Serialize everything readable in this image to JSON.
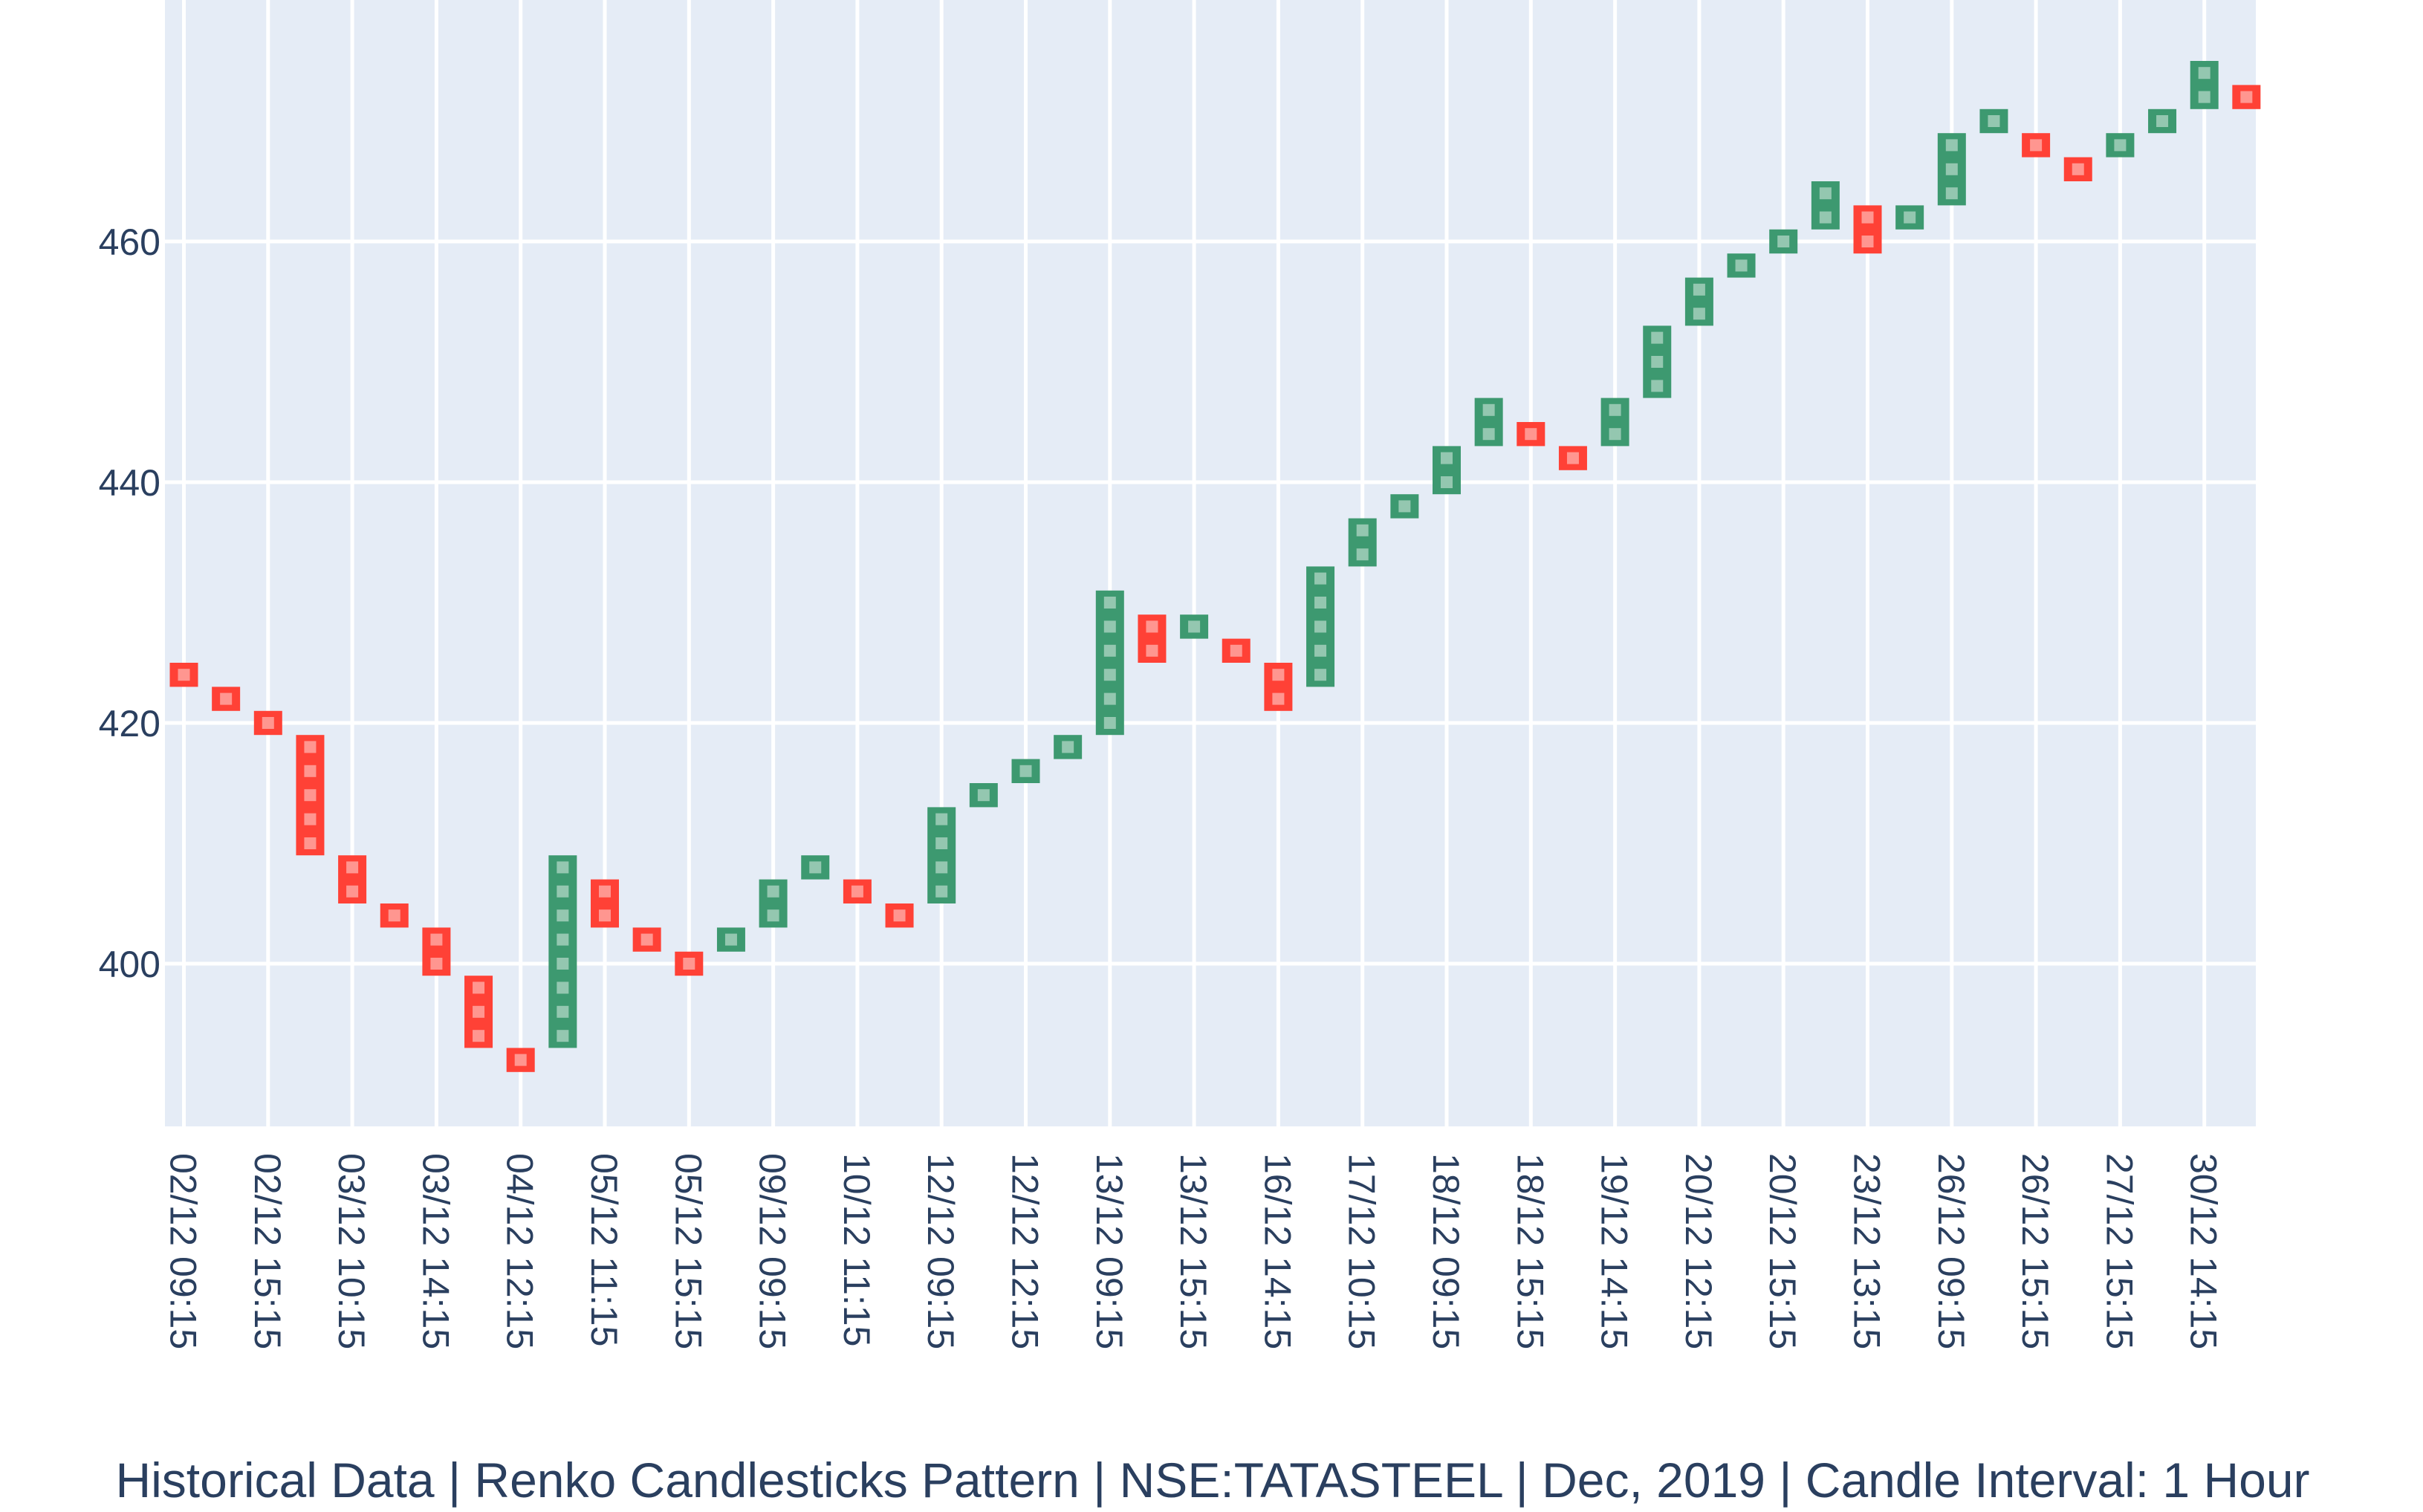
{
  "chart_data": {
    "type": "renko",
    "title": "Historical Data | Renko Candlesticks Pattern | NSE:TATASTEEL | Dec, 2019 | Candle Interval: 1 Hour",
    "xlabel": "",
    "ylabel": "",
    "box_size": 2,
    "ylim": [
      387,
      480
    ],
    "grid": true,
    "legend": "none",
    "colors": {
      "up": "#3d9970",
      "down": "#ff4136",
      "background": "#e5ecf6",
      "grid": "#ffffff",
      "text": "#2a3f5f"
    },
    "y_ticks": [
      400,
      420,
      440,
      460
    ],
    "x_tick_labels": [
      "02/12 09:15",
      "02/12 15:15",
      "03/12 10:15",
      "03/12 14:15",
      "04/12 12:15",
      "05/12 11:15",
      "05/12 15:15",
      "09/12 09:15",
      "10/12 11:15",
      "12/12 09:15",
      "12/12 12:15",
      "13/12 09:15",
      "13/12 15:15",
      "16/12 14:15",
      "17/12 10:15",
      "18/12 09:15",
      "18/12 15:15",
      "19/12 14:15",
      "20/12 12:15",
      "20/12 15:15",
      "23/12 13:15",
      "26/12 09:15",
      "26/12 15:15",
      "27/12 15:15",
      "30/12 14:15"
    ],
    "bricks": [
      {
        "direction": "down",
        "low": 423,
        "high": 425
      },
      {
        "direction": "down",
        "low": 421,
        "high": 423
      },
      {
        "direction": "down",
        "low": 419,
        "high": 421
      },
      {
        "direction": "down",
        "low": 409,
        "high": 419
      },
      {
        "direction": "down",
        "low": 405,
        "high": 409
      },
      {
        "direction": "down",
        "low": 403,
        "high": 405
      },
      {
        "direction": "down",
        "low": 399,
        "high": 403
      },
      {
        "direction": "down",
        "low": 393,
        "high": 399
      },
      {
        "direction": "down",
        "low": 391,
        "high": 393
      },
      {
        "direction": "up",
        "low": 393,
        "high": 409
      },
      {
        "direction": "down",
        "low": 403,
        "high": 407
      },
      {
        "direction": "down",
        "low": 401,
        "high": 403
      },
      {
        "direction": "down",
        "low": 399,
        "high": 401
      },
      {
        "direction": "up",
        "low": 401,
        "high": 403
      },
      {
        "direction": "up",
        "low": 403,
        "high": 407
      },
      {
        "direction": "up",
        "low": 407,
        "high": 409
      },
      {
        "direction": "down",
        "low": 405,
        "high": 407
      },
      {
        "direction": "down",
        "low": 403,
        "high": 405
      },
      {
        "direction": "up",
        "low": 405,
        "high": 413
      },
      {
        "direction": "up",
        "low": 413,
        "high": 415
      },
      {
        "direction": "up",
        "low": 415,
        "high": 417
      },
      {
        "direction": "up",
        "low": 417,
        "high": 419
      },
      {
        "direction": "up",
        "low": 419,
        "high": 431
      },
      {
        "direction": "down",
        "low": 425,
        "high": 429
      },
      {
        "direction": "up",
        "low": 427,
        "high": 429
      },
      {
        "direction": "down",
        "low": 425,
        "high": 427
      },
      {
        "direction": "down",
        "low": 421,
        "high": 425
      },
      {
        "direction": "up",
        "low": 423,
        "high": 433
      },
      {
        "direction": "up",
        "low": 433,
        "high": 437
      },
      {
        "direction": "up",
        "low": 437,
        "high": 439
      },
      {
        "direction": "up",
        "low": 439,
        "high": 443
      },
      {
        "direction": "up",
        "low": 443,
        "high": 447
      },
      {
        "direction": "down",
        "low": 443,
        "high": 445
      },
      {
        "direction": "down",
        "low": 441,
        "high": 443
      },
      {
        "direction": "up",
        "low": 443,
        "high": 447
      },
      {
        "direction": "up",
        "low": 447,
        "high": 453
      },
      {
        "direction": "up",
        "low": 453,
        "high": 457
      },
      {
        "direction": "up",
        "low": 457,
        "high": 459
      },
      {
        "direction": "up",
        "low": 459,
        "high": 461
      },
      {
        "direction": "up",
        "low": 461,
        "high": 465
      },
      {
        "direction": "down",
        "low": 459,
        "high": 463
      },
      {
        "direction": "up",
        "low": 461,
        "high": 463
      },
      {
        "direction": "up",
        "low": 463,
        "high": 469
      },
      {
        "direction": "up",
        "low": 469,
        "high": 471
      },
      {
        "direction": "down",
        "low": 467,
        "high": 469
      },
      {
        "direction": "down",
        "low": 465,
        "high": 467
      },
      {
        "direction": "up",
        "low": 467,
        "high": 469
      },
      {
        "direction": "up",
        "low": 469,
        "high": 471
      },
      {
        "direction": "up",
        "low": 471,
        "high": 475
      },
      {
        "direction": "down",
        "low": 471,
        "high": 473
      }
    ]
  }
}
